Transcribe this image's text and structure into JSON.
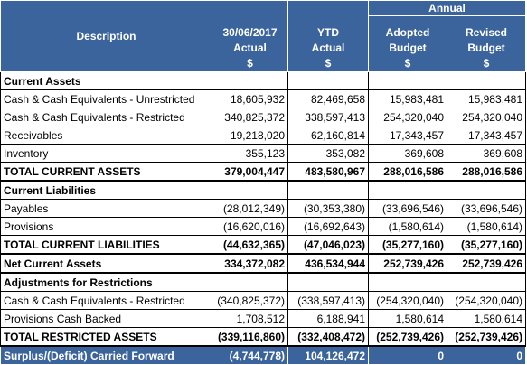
{
  "header": {
    "description": "Description",
    "annual": "Annual",
    "col1": [
      "30/06/2017",
      "Actual",
      "$"
    ],
    "col2": [
      "YTD",
      "Actual",
      "$"
    ],
    "col3": [
      "Adopted",
      "Budget",
      "$"
    ],
    "col4": [
      "Revised",
      "Budget",
      "$"
    ]
  },
  "rows": [
    {
      "label": "Current Assets",
      "values": [
        "",
        "",
        "",
        ""
      ],
      "style": "section"
    },
    {
      "label": "Cash & Cash Equivalents - Unrestricted",
      "values": [
        "18,605,932",
        "82,469,658",
        "15,983,481",
        "15,983,481"
      ],
      "style": "normal"
    },
    {
      "label": "Cash & Cash Equivalents - Restricted",
      "values": [
        "340,825,372",
        "338,597,413",
        "254,320,040",
        "254,320,040"
      ],
      "style": "normal"
    },
    {
      "label": "Receivables",
      "values": [
        "19,218,020",
        "62,160,814",
        "17,343,457",
        "17,343,457"
      ],
      "style": "normal"
    },
    {
      "label": "Inventory",
      "values": [
        "355,123",
        "353,082",
        "369,608",
        "369,608"
      ],
      "style": "normal"
    },
    {
      "label": "TOTAL CURRENT ASSETS",
      "values": [
        "379,004,447",
        "483,580,967",
        "288,016,586",
        "288,016,586"
      ],
      "style": "total"
    },
    {
      "label": "Current Liabilities",
      "values": [
        "",
        "",
        "",
        ""
      ],
      "style": "section"
    },
    {
      "label": "Payables",
      "values": [
        "(28,012,349)",
        "(30,353,380)",
        "(33,696,546)",
        "(33,696,546)"
      ],
      "style": "normal"
    },
    {
      "label": "Provisions",
      "values": [
        "(16,620,016)",
        "(16,692,643)",
        "(1,580,614)",
        "(1,580,614)"
      ],
      "style": "normal"
    },
    {
      "label": "TOTAL CURRENT LIABILITIES",
      "values": [
        "(44,632,365)",
        "(47,046,023)",
        "(35,277,160)",
        "(35,277,160)"
      ],
      "style": "total"
    },
    {
      "label": "Net Current Assets",
      "values": [
        "334,372,082",
        "436,534,944",
        "252,739,426",
        "252,739,426"
      ],
      "style": "total"
    },
    {
      "label": "Adjustments for Restrictions",
      "values": [
        "",
        "",
        "",
        ""
      ],
      "style": "section"
    },
    {
      "label": "Cash & Cash Equivalents - Restricted",
      "values": [
        "(340,825,372)",
        "(338,597,413)",
        "(254,320,040)",
        "(254,320,040)"
      ],
      "style": "normal"
    },
    {
      "label": "Provisions Cash Backed",
      "values": [
        "1,708,512",
        "6,188,941",
        "1,580,614",
        "1,580,614"
      ],
      "style": "normal"
    },
    {
      "label": "TOTAL RESTRICTED ASSETS",
      "values": [
        "(339,116,860)",
        "(332,408,472)",
        "(252,739,426)",
        "(252,739,426)"
      ],
      "style": "total"
    }
  ],
  "footer": {
    "label": "Surplus/(Deficit) Carried Forward",
    "values": [
      "(4,744,778)",
      "104,126,472",
      "0",
      "0"
    ]
  }
}
